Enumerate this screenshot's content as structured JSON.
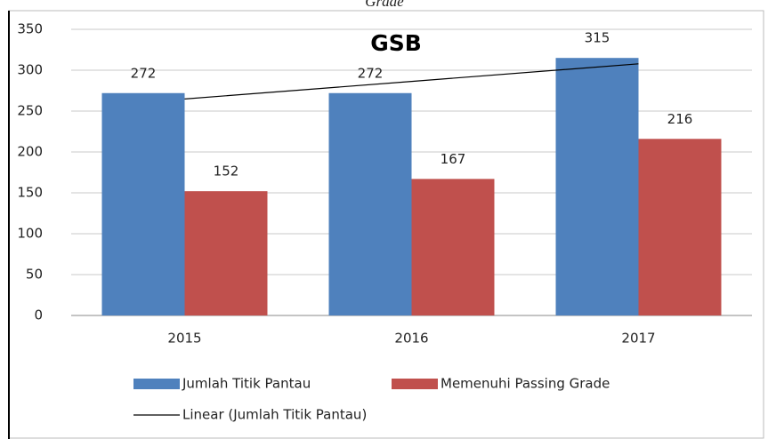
{
  "chart_data": {
    "type": "bar",
    "caption": "Grade",
    "title": "GSB",
    "categories": [
      "2015",
      "2016",
      "2017"
    ],
    "series": [
      {
        "name": "Jumlah Titik Pantau",
        "color": "#4f81bd",
        "values": [
          272,
          272,
          315
        ]
      },
      {
        "name": "Memenuhi Passing Grade",
        "color": "#c0504d",
        "values": [
          152,
          167,
          216
        ]
      }
    ],
    "trendline": {
      "name": "Linear (Jumlah Titik Pantau)",
      "color": "#000000",
      "values": [
        264.8,
        286.3,
        307.8
      ]
    },
    "ylim": [
      0,
      350
    ],
    "yticks": [
      0,
      50,
      100,
      150,
      200,
      250,
      300,
      350
    ],
    "grid": true
  }
}
